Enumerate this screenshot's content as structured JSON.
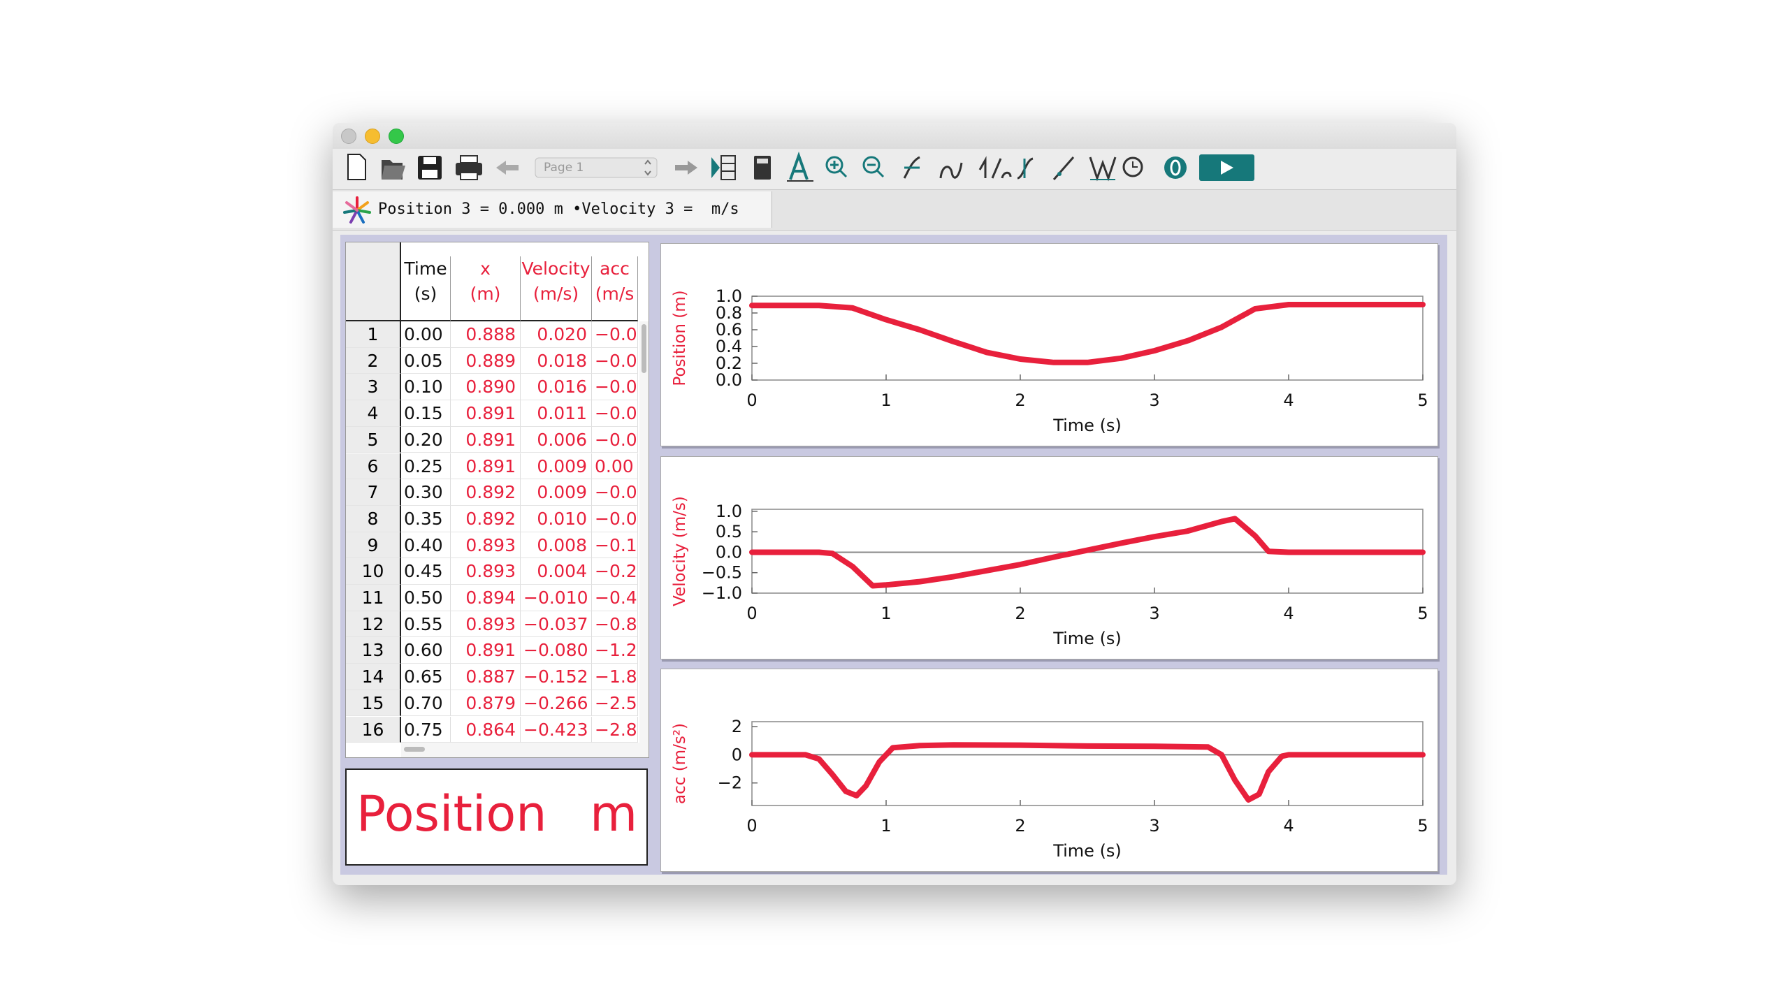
{
  "toolbar": {
    "page_select": "Page 1"
  },
  "status": "Position 3 = 0.000 m •Velocity 3 =  m/s",
  "table": {
    "columns": [
      [
        "Time",
        "(s)"
      ],
      [
        "x",
        "(m)"
      ],
      [
        "Velocity",
        "(m/s)"
      ],
      [
        "acc",
        "(m/s"
      ]
    ],
    "row_numbers": [
      "1",
      "2",
      "3",
      "4",
      "5",
      "6",
      "7",
      "8",
      "9",
      "10",
      "11",
      "12",
      "13",
      "14",
      "15",
      "16"
    ],
    "rows": [
      [
        "0.00",
        "0.888",
        "0.020",
        "−0.0"
      ],
      [
        "0.05",
        "0.889",
        "0.018",
        "−0.0"
      ],
      [
        "0.10",
        "0.890",
        "0.016",
        "−0.0"
      ],
      [
        "0.15",
        "0.891",
        "0.011",
        "−0.0"
      ],
      [
        "0.20",
        "0.891",
        "0.006",
        "−0.0"
      ],
      [
        "0.25",
        "0.891",
        "0.009",
        "0.00"
      ],
      [
        "0.30",
        "0.892",
        "0.009",
        "−0.0"
      ],
      [
        "0.35",
        "0.892",
        "0.010",
        "−0.0"
      ],
      [
        "0.40",
        "0.893",
        "0.008",
        "−0.1"
      ],
      [
        "0.45",
        "0.893",
        "0.004",
        "−0.2"
      ],
      [
        "0.50",
        "0.894",
        "−0.010",
        "−0.4"
      ],
      [
        "0.55",
        "0.893",
        "−0.037",
        "−0.8"
      ],
      [
        "0.60",
        "0.891",
        "−0.080",
        "−1.2"
      ],
      [
        "0.65",
        "0.887",
        "−0.152",
        "−1.8"
      ],
      [
        "0.70",
        "0.879",
        "−0.266",
        "−2.5"
      ],
      [
        "0.75",
        "0.864",
        "−0.423",
        "−2.8"
      ]
    ]
  },
  "meter": {
    "label": "Position",
    "unit": "m"
  },
  "chart_data": [
    {
      "type": "line",
      "xlabel": "Time (s)",
      "ylabel": "Position (m)",
      "color": "#e8203c",
      "xlim": [
        0,
        5
      ],
      "xticks": [
        0,
        1,
        2,
        3,
        4,
        5
      ],
      "ylim": [
        0,
        1.0
      ],
      "yticks": [
        {
          "value": 0,
          "label": "0.0"
        },
        0.2,
        0.4,
        0.6,
        0.8,
        {
          "value": 1,
          "label": "1.0"
        }
      ],
      "x": [
        0,
        0.25,
        0.5,
        0.75,
        1,
        1.25,
        1.5,
        1.75,
        2,
        2.25,
        2.5,
        2.75,
        3,
        3.25,
        3.5,
        3.75,
        4,
        4.25,
        4.5,
        4.75,
        5
      ],
      "values": [
        0.89,
        0.89,
        0.89,
        0.86,
        0.72,
        0.6,
        0.46,
        0.33,
        0.25,
        0.21,
        0.21,
        0.26,
        0.35,
        0.47,
        0.63,
        0.85,
        0.9,
        0.9,
        0.9,
        0.9,
        0.9
      ]
    },
    {
      "type": "line",
      "xlabel": "Time (s)",
      "ylabel": "Velocity (m/s)",
      "color": "#e8203c",
      "xlim": [
        0,
        5
      ],
      "xticks": [
        0,
        1,
        2,
        3,
        4,
        5
      ],
      "ylim": [
        -1.0,
        1.05
      ],
      "yticks": [
        {
          "value": -1,
          "label": "−1.0"
        },
        {
          "value": -0.5,
          "label": "−0.5"
        },
        {
          "value": 0,
          "label": "0.0"
        },
        0.5,
        {
          "value": 1,
          "label": "1.0"
        }
      ],
      "x": [
        0,
        0.25,
        0.5,
        0.6,
        0.75,
        0.9,
        1,
        1.25,
        1.5,
        1.75,
        2,
        2.25,
        2.5,
        2.75,
        3,
        3.25,
        3.5,
        3.6,
        3.75,
        3.85,
        4,
        4.5,
        5
      ],
      "values": [
        0,
        0,
        0,
        -0.03,
        -0.35,
        -0.82,
        -0.8,
        -0.72,
        -0.6,
        -0.45,
        -0.3,
        -0.12,
        0.05,
        0.22,
        0.38,
        0.52,
        0.75,
        0.82,
        0.4,
        0.02,
        0,
        0,
        0
      ]
    },
    {
      "type": "line",
      "xlabel": "Time (s)",
      "ylabel": "acc (m/s²)",
      "color": "#e8203c",
      "xlim": [
        0,
        5
      ],
      "xticks": [
        0,
        1,
        2,
        3,
        4,
        5
      ],
      "ylim": [
        -3.6,
        2.35
      ],
      "yticks": [
        {
          "value": -2,
          "label": "−2"
        },
        0,
        2
      ],
      "x": [
        0,
        0.25,
        0.4,
        0.5,
        0.6,
        0.7,
        0.78,
        0.85,
        0.95,
        1.05,
        1.25,
        1.5,
        2,
        2.5,
        3,
        3.4,
        3.5,
        3.6,
        3.7,
        3.78,
        3.85,
        3.95,
        4,
        4.5,
        5
      ],
      "values": [
        0,
        0,
        0,
        -0.3,
        -1.4,
        -2.6,
        -2.9,
        -2.2,
        -0.5,
        0.5,
        0.65,
        0.7,
        0.68,
        0.62,
        0.6,
        0.55,
        0,
        -1.8,
        -3.2,
        -2.8,
        -1.2,
        -0.1,
        0,
        0,
        0
      ]
    }
  ]
}
